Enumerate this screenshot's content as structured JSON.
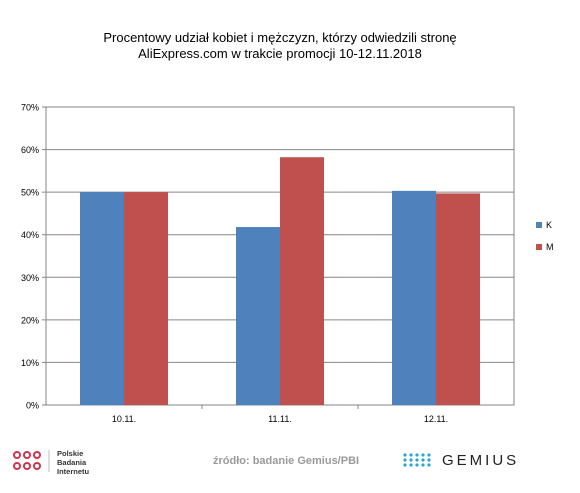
{
  "chart_data": {
    "type": "bar",
    "title_lines": [
      "Procentowy  udział kobiet i mężczyzn,  którzy  odwiedzili stronę",
      "AliExpress.com w trakcie promocji 10-12.11.2018"
    ],
    "categories": [
      "10.11.",
      "11.11.",
      "12.11."
    ],
    "series": [
      {
        "name": "K",
        "values": [
          50.0,
          41.8,
          50.3
        ],
        "color": "#4f81bd"
      },
      {
        "name": "M",
        "values": [
          50.0,
          58.2,
          49.7
        ],
        "color": "#c0504d"
      }
    ],
    "y_ticks": [
      "0%",
      "10%",
      "20%",
      "30%",
      "40%",
      "50%",
      "60%",
      "70%"
    ],
    "ylim": [
      0,
      70
    ],
    "grid": true,
    "legend_position": "right"
  },
  "footer": {
    "logo_lines": [
      "Polskie",
      "Badania",
      "Internetu"
    ],
    "source": "źródło: badanie Gemius/PBI",
    "brand": "GEMIUS"
  }
}
